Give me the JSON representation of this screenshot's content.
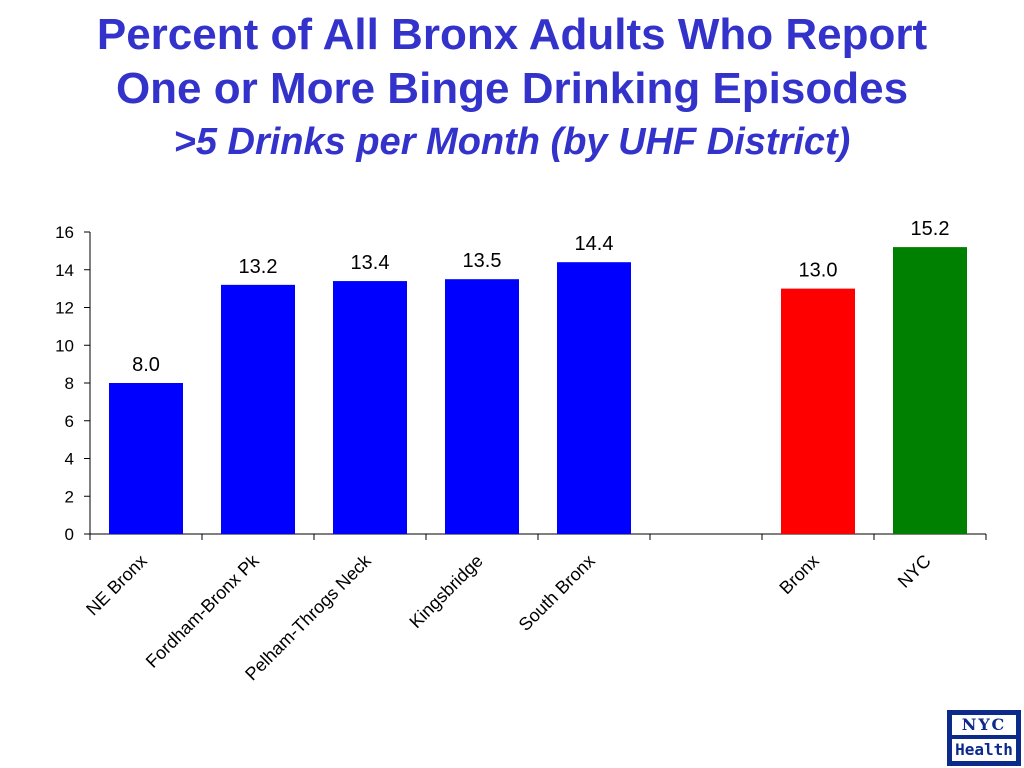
{
  "title": {
    "line1": "Percent of All Bronx Adults Who Report",
    "line2": "One or More Binge Drinking Episodes",
    "line3": ">5 Drinks per Month (by UHF District)"
  },
  "logo": {
    "top": "NYC",
    "bottom": "Health"
  },
  "chart_data": {
    "type": "bar",
    "categories": [
      "NE Bronx",
      "Fordham-Bronx Pk",
      "Pelham-Throgs Neck",
      "Kingsbridge",
      "South Bronx",
      "",
      "Bronx",
      "NYC"
    ],
    "values": [
      8.0,
      13.2,
      13.4,
      13.5,
      14.4,
      null,
      13.0,
      15.2
    ],
    "value_labels": [
      "8.0",
      "13.2",
      "13.4",
      "13.5",
      "14.4",
      "",
      "13.0",
      "15.2"
    ],
    "colors": [
      "#0000ff",
      "#0000ff",
      "#0000ff",
      "#0000ff",
      "#0000ff",
      "",
      "#ff0000",
      "#008000"
    ],
    "ylim": [
      0,
      16
    ],
    "yticks": [
      "0",
      "2",
      "4",
      "6",
      "8",
      "10",
      "12",
      "14",
      "16"
    ],
    "grid": false,
    "xlabel": "",
    "ylabel": ""
  }
}
